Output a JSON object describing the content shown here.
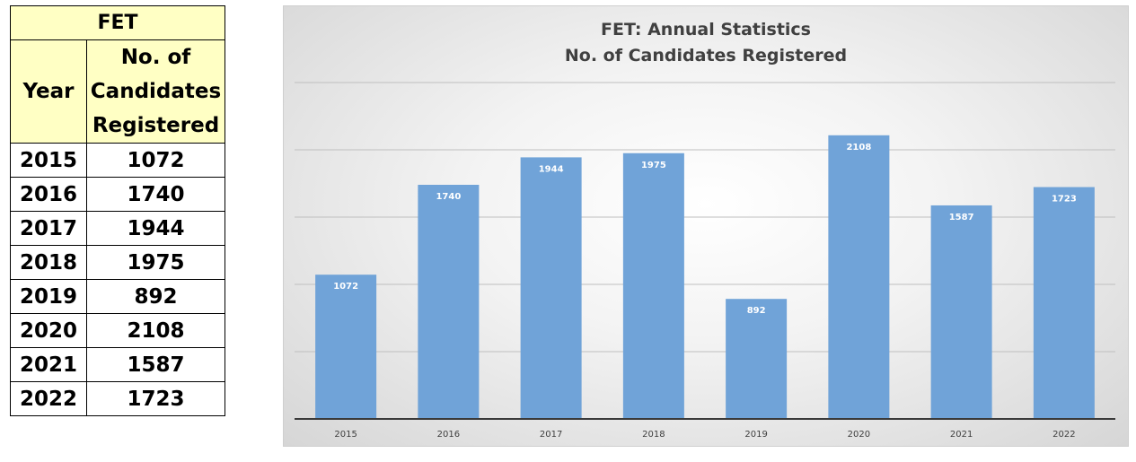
{
  "table": {
    "title": "FET",
    "headers": {
      "year": "Year",
      "count_lines": [
        "No. of",
        "Candidates",
        "Registered"
      ]
    },
    "rows": [
      {
        "year": "2015",
        "value": "1072"
      },
      {
        "year": "2016",
        "value": "1740"
      },
      {
        "year": "2017",
        "value": "1944"
      },
      {
        "year": "2018",
        "value": "1975"
      },
      {
        "year": "2019",
        "value": "892"
      },
      {
        "year": "2020",
        "value": "2108"
      },
      {
        "year": "2021",
        "value": "1587"
      },
      {
        "year": "2022",
        "value": "1723"
      }
    ]
  },
  "chart_data": {
    "type": "bar",
    "title": "FET: Annual Statistics",
    "subtitle": "No. of Candidates Registered",
    "categories": [
      "2015",
      "2016",
      "2017",
      "2018",
      "2019",
      "2020",
      "2021",
      "2022"
    ],
    "values": [
      1072,
      1740,
      1944,
      1975,
      892,
      2108,
      1587,
      1723
    ],
    "xlabel": "",
    "ylabel": "",
    "ylim": [
      0,
      2500
    ],
    "grid": true,
    "legend": "none",
    "data_labels": true,
    "colors": {
      "bar": "#70a3d8",
      "label": "#ffffff"
    }
  }
}
